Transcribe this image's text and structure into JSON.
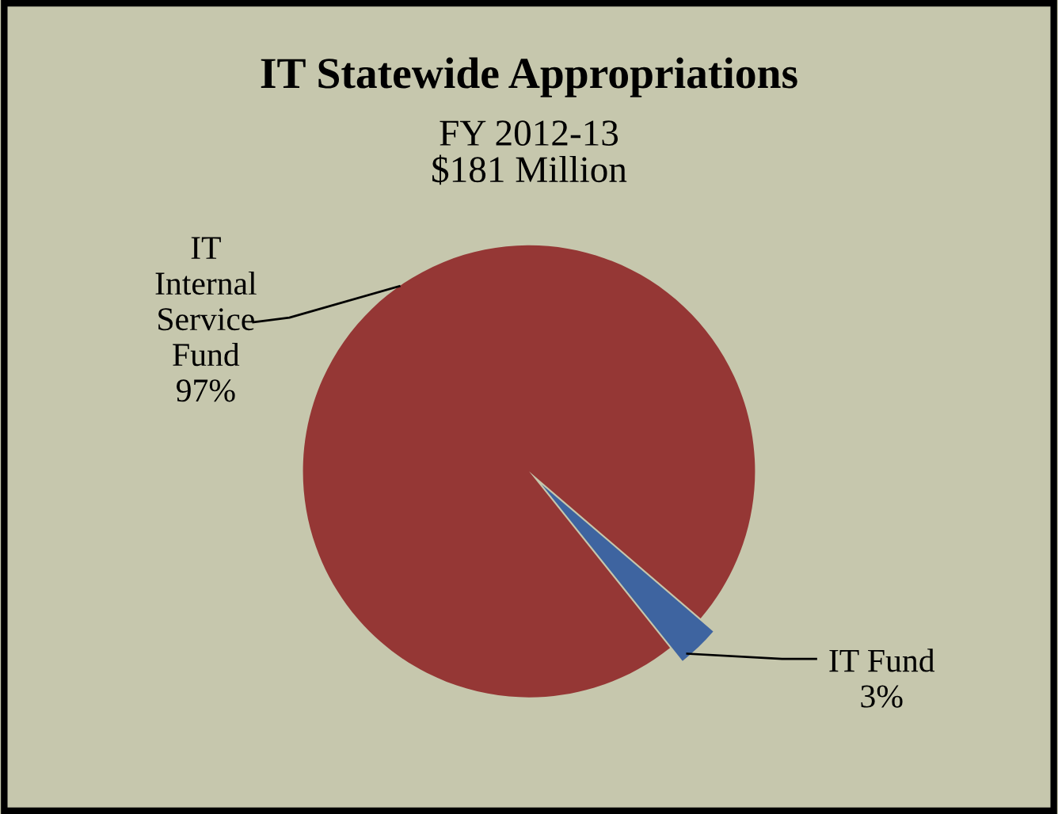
{
  "chart_data": {
    "type": "pie",
    "title": "IT Statewide Appropriations",
    "subtitle": "FY 2012-13\n$181 Million",
    "categories": [
      "IT\nInternal\nService\nFund",
      "IT Fund"
    ],
    "values": [
      97,
      3
    ],
    "value_labels": [
      "97%",
      "3%"
    ],
    "colors": [
      "#953735",
      "#3e64a0"
    ]
  }
}
